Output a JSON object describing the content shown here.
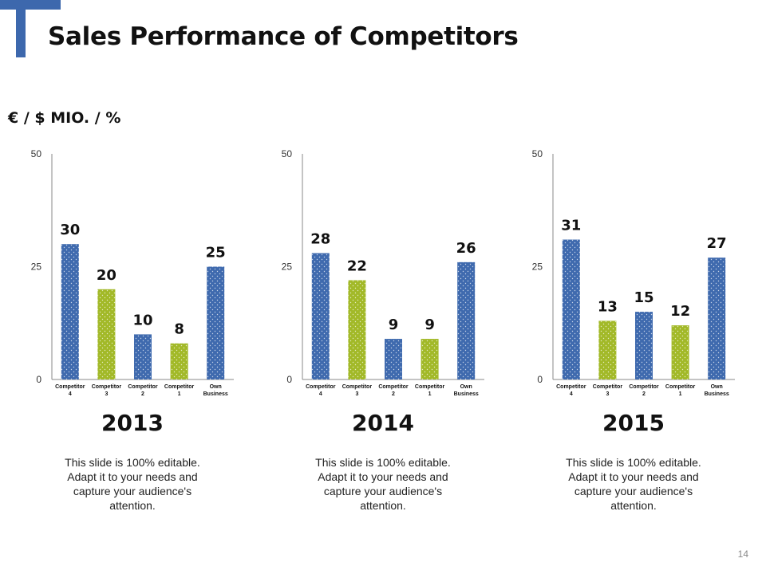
{
  "slide": {
    "title": "Sales Performance of Competitors",
    "unit_label": "€ / $ MIO. / %",
    "page_number": "14",
    "colors": {
      "blue": "#3F6AAE",
      "green": "#A2B928",
      "logo": "#3D68AD"
    }
  },
  "chart_data": [
    {
      "type": "bar",
      "title": "2013",
      "categories": [
        "Competitor 4",
        "Competitor 3",
        "Competitor 2",
        "Competitor 1",
        "Own Business"
      ],
      "values": [
        30,
        20,
        10,
        8,
        25
      ],
      "ylim": [
        0,
        50
      ],
      "yticks": [
        0,
        25,
        50
      ],
      "grid": false,
      "description": "This slide is 100% editable. Adapt it to your needs and capture your audience's attention."
    },
    {
      "type": "bar",
      "title": "2014",
      "categories": [
        "Competitor 4",
        "Competitor 3",
        "Competitor 2",
        "Competitor 1",
        "Own Business"
      ],
      "values": [
        28,
        22,
        9,
        9,
        26
      ],
      "ylim": [
        0,
        50
      ],
      "yticks": [
        0,
        25,
        50
      ],
      "grid": false,
      "description": "This slide is 100% editable. Adapt it to your needs and capture your audience's attention."
    },
    {
      "type": "bar",
      "title": "2015",
      "categories": [
        "Competitor 4",
        "Competitor 3",
        "Competitor 2",
        "Competitor 1",
        "Own Business"
      ],
      "values": [
        31,
        13,
        15,
        12,
        27
      ],
      "ylim": [
        0,
        50
      ],
      "yticks": [
        0,
        25,
        50
      ],
      "grid": false,
      "description": "This slide is 100% editable. Adapt it to your needs and capture your audience's attention."
    }
  ]
}
